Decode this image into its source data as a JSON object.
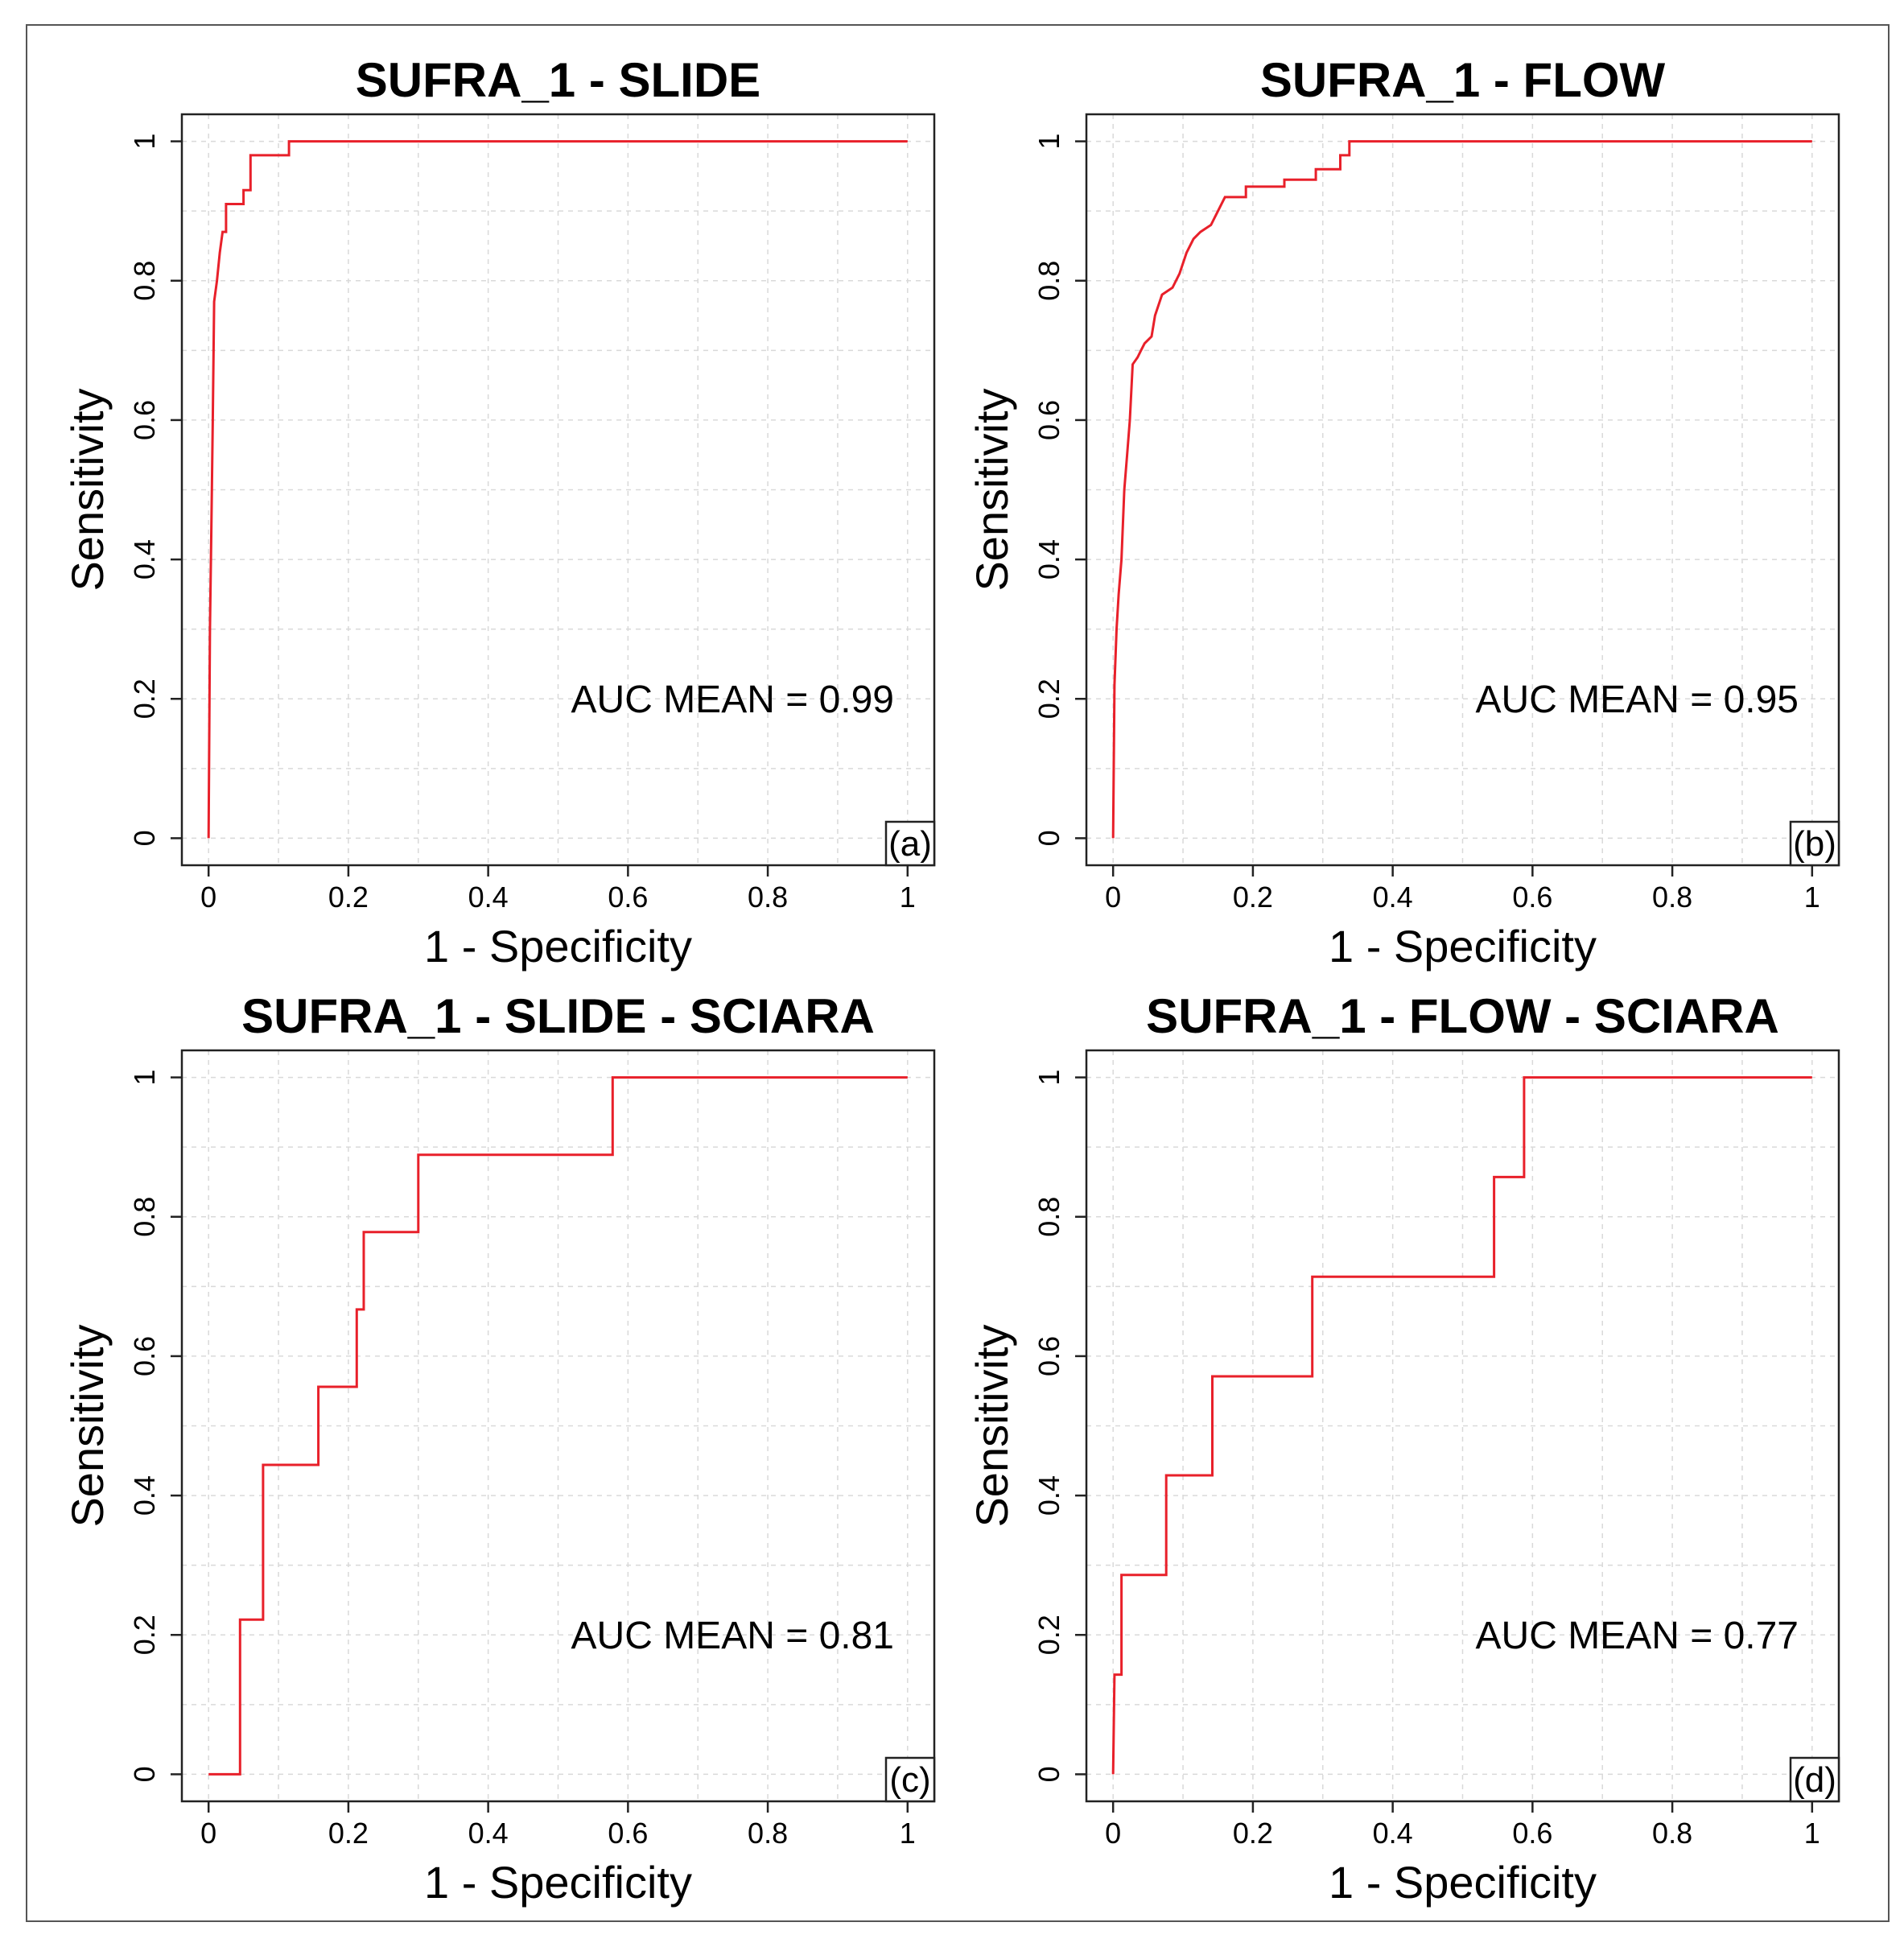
{
  "chart_data": [
    {
      "type": "line",
      "title": "SUFRA_1 - SLIDE",
      "xlabel": "1 - Specificity",
      "ylabel": "Sensitivity",
      "xlim": [
        0,
        1
      ],
      "ylim": [
        0,
        1
      ],
      "xticks": [
        "0",
        "0.2",
        "0.4",
        "0.6",
        "0.8",
        "1"
      ],
      "yticks": [
        "0",
        "0.2",
        "0.4",
        "0.6",
        "0.8",
        "1"
      ],
      "grid": true,
      "annotation": "AUC MEAN = 0.99",
      "panel_tag": "(a)",
      "color": "#e8202a",
      "points": [
        [
          0,
          0
        ],
        [
          0.002,
          0.3
        ],
        [
          0.004,
          0.45
        ],
        [
          0.006,
          0.6
        ],
        [
          0.008,
          0.77
        ],
        [
          0.012,
          0.8
        ],
        [
          0.016,
          0.84
        ],
        [
          0.02,
          0.87
        ],
        [
          0.025,
          0.87
        ],
        [
          0.025,
          0.91
        ],
        [
          0.05,
          0.91
        ],
        [
          0.05,
          0.93
        ],
        [
          0.06,
          0.93
        ],
        [
          0.06,
          0.98
        ],
        [
          0.115,
          0.98
        ],
        [
          0.115,
          1.0
        ],
        [
          1,
          1.0
        ]
      ]
    },
    {
      "type": "line",
      "title": "SUFRA_1 - FLOW",
      "xlabel": "1 - Specificity",
      "ylabel": "Sensitivity",
      "xlim": [
        0,
        1
      ],
      "ylim": [
        0,
        1
      ],
      "xticks": [
        "0",
        "0.2",
        "0.4",
        "0.6",
        "0.8",
        "1"
      ],
      "yticks": [
        "0",
        "0.2",
        "0.4",
        "0.6",
        "0.8",
        "1"
      ],
      "grid": true,
      "annotation": "AUC MEAN = 0.95",
      "panel_tag": "(b)",
      "color": "#e8202a",
      "points": [
        [
          0,
          0
        ],
        [
          0.002,
          0.22
        ],
        [
          0.005,
          0.3
        ],
        [
          0.008,
          0.35
        ],
        [
          0.012,
          0.4
        ],
        [
          0.016,
          0.5
        ],
        [
          0.02,
          0.55
        ],
        [
          0.024,
          0.6
        ],
        [
          0.028,
          0.68
        ],
        [
          0.035,
          0.69
        ],
        [
          0.04,
          0.7
        ],
        [
          0.045,
          0.71
        ],
        [
          0.055,
          0.72
        ],
        [
          0.06,
          0.75
        ],
        [
          0.07,
          0.78
        ],
        [
          0.085,
          0.79
        ],
        [
          0.095,
          0.81
        ],
        [
          0.105,
          0.84
        ],
        [
          0.115,
          0.86
        ],
        [
          0.125,
          0.87
        ],
        [
          0.14,
          0.88
        ],
        [
          0.15,
          0.9
        ],
        [
          0.16,
          0.92
        ],
        [
          0.19,
          0.92
        ],
        [
          0.19,
          0.935
        ],
        [
          0.245,
          0.935
        ],
        [
          0.245,
          0.945
        ],
        [
          0.29,
          0.945
        ],
        [
          0.29,
          0.96
        ],
        [
          0.325,
          0.96
        ],
        [
          0.325,
          0.98
        ],
        [
          0.338,
          0.98
        ],
        [
          0.338,
          1.0
        ],
        [
          1,
          1.0
        ]
      ]
    },
    {
      "type": "line",
      "title": "SUFRA_1 - SLIDE - SCIARA",
      "xlabel": "1 - Specificity",
      "ylabel": "Sensitivity",
      "xlim": [
        0,
        1
      ],
      "ylim": [
        0,
        1
      ],
      "xticks": [
        "0",
        "0.2",
        "0.4",
        "0.6",
        "0.8",
        "1"
      ],
      "yticks": [
        "0",
        "0.2",
        "0.4",
        "0.6",
        "0.8",
        "1"
      ],
      "grid": true,
      "annotation": "AUC MEAN = 0.81",
      "panel_tag": "(c)",
      "color": "#e8202a",
      "points": [
        [
          0,
          0
        ],
        [
          0.045,
          0
        ],
        [
          0.045,
          0.222
        ],
        [
          0.078,
          0.222
        ],
        [
          0.078,
          0.444
        ],
        [
          0.157,
          0.444
        ],
        [
          0.157,
          0.556
        ],
        [
          0.212,
          0.556
        ],
        [
          0.212,
          0.667
        ],
        [
          0.222,
          0.667
        ],
        [
          0.222,
          0.778
        ],
        [
          0.3,
          0.778
        ],
        [
          0.3,
          0.889
        ],
        [
          0.578,
          0.889
        ],
        [
          0.578,
          1.0
        ],
        [
          1,
          1.0
        ]
      ]
    },
    {
      "type": "line",
      "title": "SUFRA_1 - FLOW - SCIARA",
      "xlabel": "1 - Specificity",
      "ylabel": "Sensitivity",
      "xlim": [
        0,
        1
      ],
      "ylim": [
        0,
        1
      ],
      "xticks": [
        "0",
        "0.2",
        "0.4",
        "0.6",
        "0.8",
        "1"
      ],
      "yticks": [
        "0",
        "0.2",
        "0.4",
        "0.6",
        "0.8",
        "1"
      ],
      "grid": true,
      "annotation": "AUC MEAN = 0.77",
      "panel_tag": "(d)",
      "color": "#e8202a",
      "points": [
        [
          0,
          0
        ],
        [
          0.002,
          0.143
        ],
        [
          0.012,
          0.143
        ],
        [
          0.012,
          0.286
        ],
        [
          0.076,
          0.286
        ],
        [
          0.076,
          0.429
        ],
        [
          0.142,
          0.429
        ],
        [
          0.142,
          0.571
        ],
        [
          0.285,
          0.571
        ],
        [
          0.285,
          0.714
        ],
        [
          0.545,
          0.714
        ],
        [
          0.545,
          0.857
        ],
        [
          0.588,
          0.857
        ],
        [
          0.588,
          1.0
        ],
        [
          1,
          1.0
        ]
      ]
    }
  ]
}
